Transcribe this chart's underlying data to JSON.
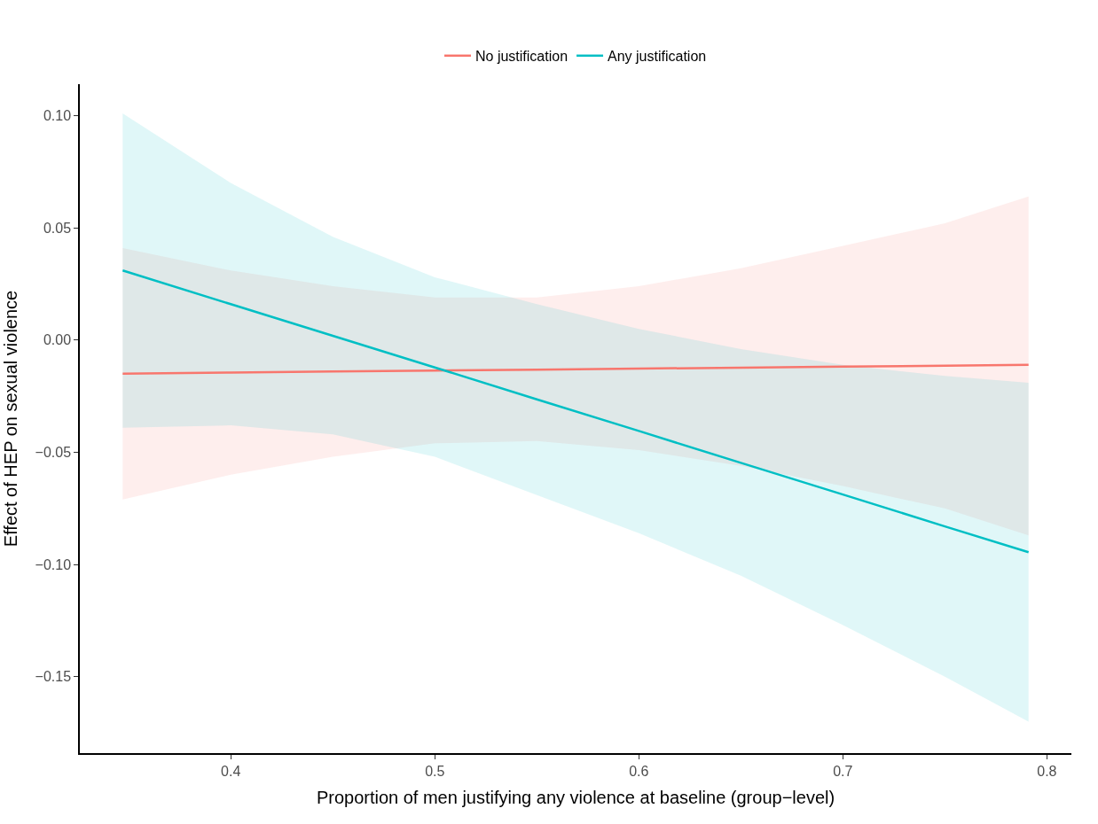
{
  "chart_data": {
    "type": "line",
    "xlabel": "Proportion of men justifying any violence at baseline (group−level)",
    "ylabel": "Effect of HEP on sexual violence",
    "x": [
      0.347,
      0.4,
      0.45,
      0.5,
      0.55,
      0.6,
      0.65,
      0.7,
      0.75,
      0.791
    ],
    "series": [
      {
        "name": "No justification",
        "color": "#f8766d",
        "values": [
          -0.015,
          -0.0145,
          -0.014,
          -0.0136,
          -0.0132,
          -0.0127,
          -0.0123,
          -0.0118,
          -0.0114,
          -0.011
        ],
        "lower": [
          -0.071,
          -0.06,
          -0.052,
          -0.046,
          -0.045,
          -0.049,
          -0.056,
          -0.065,
          -0.075,
          -0.087
        ],
        "upper": [
          0.041,
          0.031,
          0.024,
          0.019,
          0.019,
          0.024,
          0.032,
          0.042,
          0.052,
          0.064
        ]
      },
      {
        "name": "Any justification",
        "color": "#00bfc4",
        "values": [
          0.031,
          0.016,
          0.0019,
          -0.0122,
          -0.0264,
          -0.0405,
          -0.0547,
          -0.0688,
          -0.083,
          -0.0945
        ],
        "lower": [
          -0.039,
          -0.038,
          -0.042,
          -0.052,
          -0.069,
          -0.086,
          -0.105,
          -0.127,
          -0.15,
          -0.17
        ],
        "upper": [
          0.101,
          0.07,
          0.046,
          0.028,
          0.016,
          0.005,
          -0.004,
          -0.011,
          -0.016,
          -0.019
        ]
      }
    ],
    "xlim": [
      0.326,
      0.812
    ],
    "xticks": [
      0.4,
      0.5,
      0.6,
      0.7,
      0.8
    ],
    "ylim": [
      -0.184,
      0.114
    ],
    "yticks": [
      {
        "value": -0.15,
        "label": "−0.15"
      },
      {
        "value": -0.1,
        "label": "−0.10"
      },
      {
        "value": -0.05,
        "label": "−0.05"
      },
      {
        "value": 0,
        "label": "0.00"
      },
      {
        "value": 0.05,
        "label": "0.05"
      },
      {
        "value": 0.1,
        "label": "0.10"
      }
    ],
    "grid": false,
    "legend": "top",
    "marker": "none",
    "line_style": "solid"
  }
}
